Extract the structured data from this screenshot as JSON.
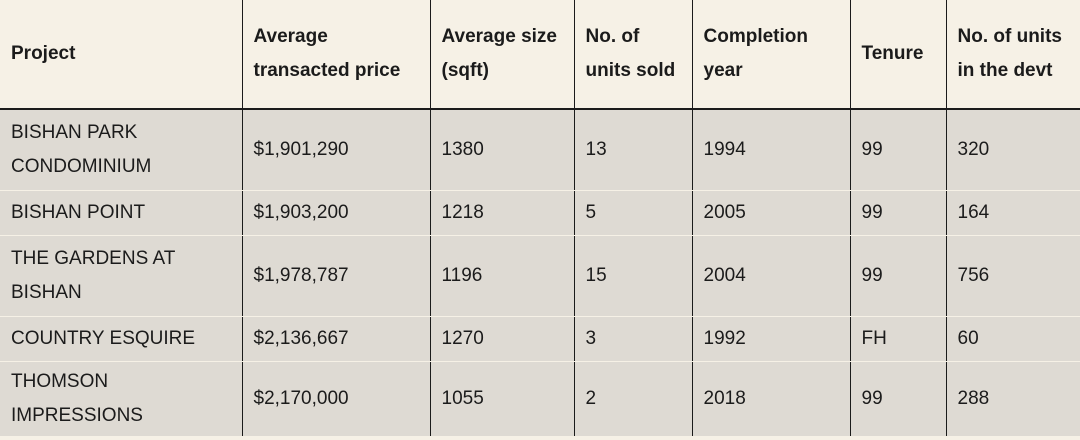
{
  "table": {
    "headers": [
      "Project",
      "Average transacted price",
      "Average size (sqft)",
      "No. of units sold",
      "Completion year",
      "Tenure",
      "No. of units in the devt"
    ],
    "rows": [
      [
        "BISHAN PARK CONDOMINIUM",
        "$1,901,290",
        "1380",
        "13",
        "1994",
        "99",
        "320"
      ],
      [
        "BISHAN POINT",
        "$1,903,200",
        "1218",
        "5",
        "2005",
        "99",
        "164"
      ],
      [
        "THE GARDENS AT BISHAN",
        "$1,978,787",
        "1196",
        "15",
        "2004",
        "99",
        "756"
      ],
      [
        "COUNTRY ESQUIRE",
        "$2,136,667",
        "1270",
        "3",
        "1992",
        "FH",
        "60"
      ],
      [
        "THOMSON IMPRESSIONS",
        "$2,170,000",
        "1055",
        "2",
        "2018",
        "99",
        "288"
      ]
    ]
  }
}
